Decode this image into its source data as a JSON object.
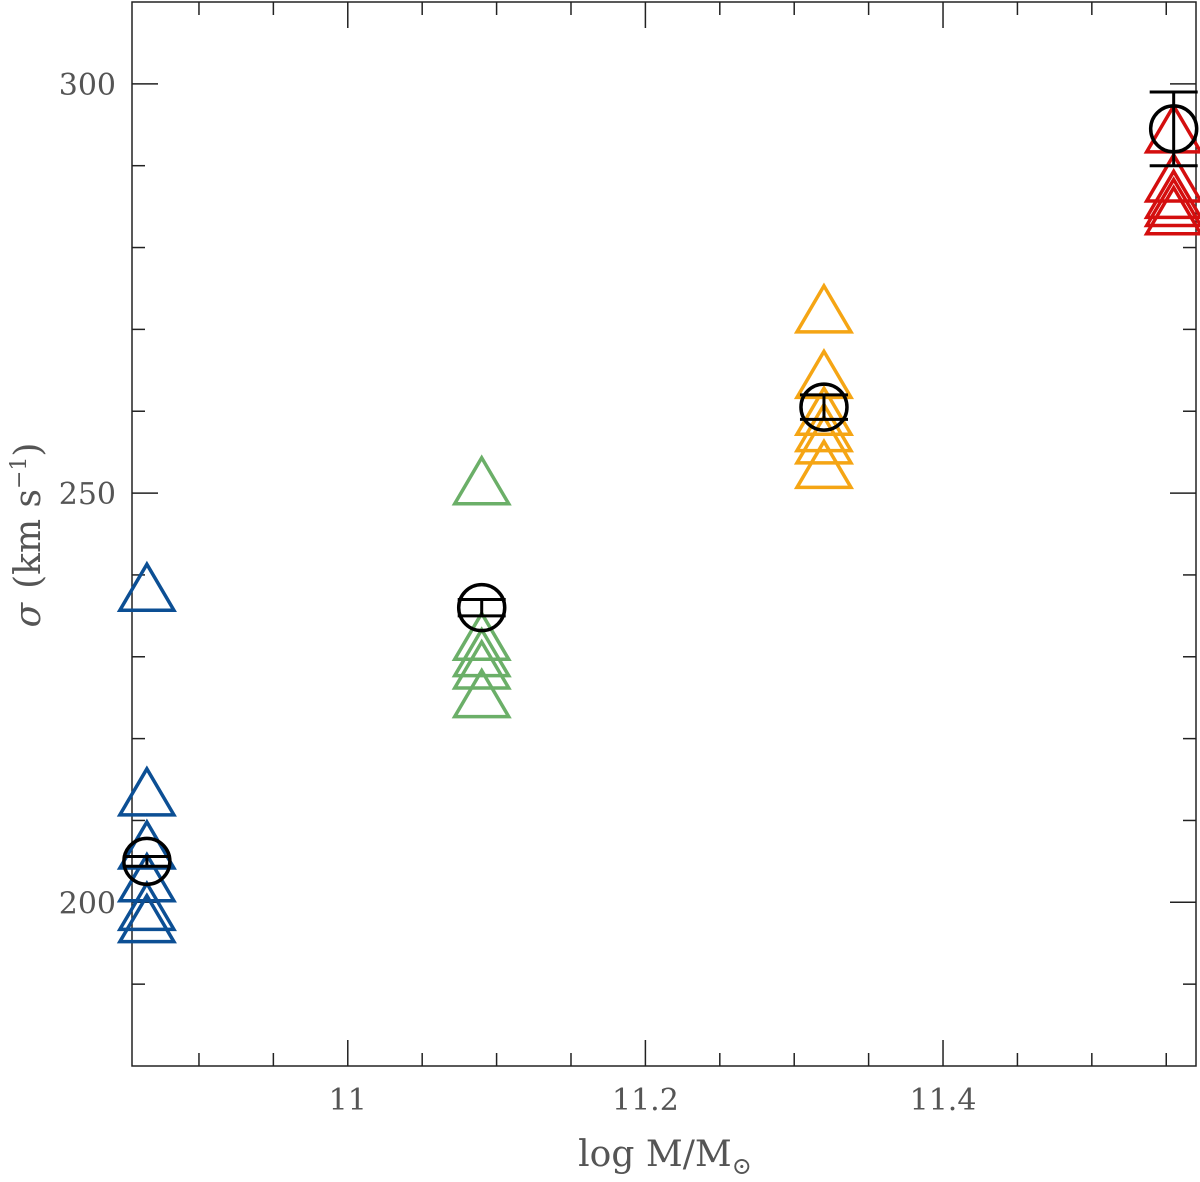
{
  "chart_data": {
    "type": "scatter",
    "xlabel": "log M/M",
    "xlabel_sub": "⊙",
    "ylabel": "(km s",
    "ylabel_symbol": "σ",
    "ylabel_sup": "−1",
    "ylabel_close": ")",
    "xlim": [
      10.855,
      11.57
    ],
    "ylim": [
      180,
      310
    ],
    "x_major_ticks": [
      11,
      11.2,
      11.4
    ],
    "x_tick_labels": [
      "11",
      "11.2",
      "11.4"
    ],
    "x_minor_ticks": [
      10.9,
      10.95,
      11.05,
      11.1,
      11.15,
      11.25,
      11.3,
      11.35,
      11.45,
      11.5,
      11.55
    ],
    "y_major_ticks": [
      200,
      250,
      300
    ],
    "y_tick_labels": [
      "200",
      "250",
      "300"
    ],
    "y_minor_ticks": [
      190,
      210,
      220,
      230,
      240,
      260,
      270,
      280,
      290
    ],
    "grid": false,
    "series": [
      {
        "color": "#0c4f94",
        "marker": "triangle",
        "x": 10.865,
        "y": [
          238.5,
          213.5,
          207,
          203,
          199.5,
          198
        ]
      },
      {
        "color": "#6baf68",
        "marker": "triangle",
        "x": 11.09,
        "y": [
          251.5,
          232.5,
          230.5,
          229,
          225.5
        ]
      },
      {
        "color": "#f5a514",
        "marker": "triangle",
        "x": 11.32,
        "y": [
          272.5,
          264.5,
          260,
          258,
          256.5,
          253.5
        ]
      },
      {
        "color": "#d40e0e",
        "marker": "triangle",
        "x": 11.555,
        "y": [
          294.5,
          288.5,
          286.5,
          285.5,
          284.5
        ]
      },
      {
        "color": "#000000",
        "marker": "circle-errorbar",
        "name": "",
        "points": [
          {
            "x": 10.865,
            "y": 205,
            "yerr": 0.6
          },
          {
            "x": 11.09,
            "y": 236,
            "yerr": 1
          },
          {
            "x": 11.32,
            "y": 260.5,
            "yerr": 1.5
          },
          {
            "x": 11.555,
            "y": 294.5,
            "yerr": 4.5
          }
        ]
      }
    ]
  }
}
